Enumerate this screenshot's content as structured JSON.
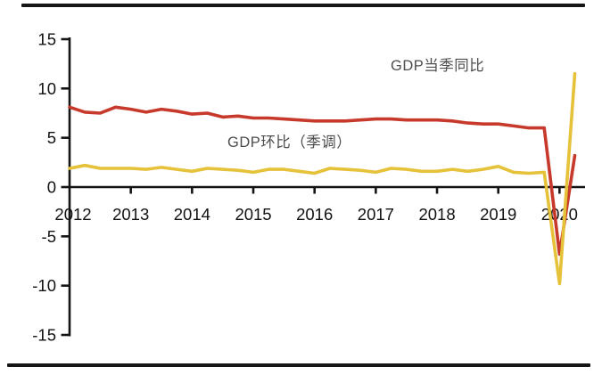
{
  "figure": {
    "background": "#ffffff",
    "frame_rule_color": "#161616",
    "axis_color": "#141414",
    "axis_label_color": "#121212",
    "series_label_color": "#4d4d4d"
  },
  "chart_data": {
    "type": "line",
    "title": "",
    "grid": false,
    "legend_position": "inline-annotations",
    "x_axis": {
      "year_labels": [
        "2012",
        "2013",
        "2014",
        "2015",
        "2016",
        "2017",
        "2018",
        "2019",
        "2020"
      ],
      "categories": [
        "2012Q1",
        "2012Q2",
        "2012Q3",
        "2012Q4",
        "2013Q1",
        "2013Q2",
        "2013Q3",
        "2013Q4",
        "2014Q1",
        "2014Q2",
        "2014Q3",
        "2014Q4",
        "2015Q1",
        "2015Q2",
        "2015Q3",
        "2015Q4",
        "2016Q1",
        "2016Q2",
        "2016Q3",
        "2016Q4",
        "2017Q1",
        "2017Q2",
        "2017Q3",
        "2017Q4",
        "2018Q1",
        "2018Q2",
        "2018Q3",
        "2018Q4",
        "2019Q1",
        "2019Q2",
        "2019Q3",
        "2019Q4",
        "2020Q1",
        "2020Q2"
      ]
    },
    "y_axis": {
      "ticks": [
        15,
        10,
        5,
        0,
        -5,
        -10,
        -15
      ],
      "ylim": [
        -15,
        15
      ],
      "unit": "%"
    },
    "series": [
      {
        "id": "gdp-yoy",
        "name": "GDP当季同比",
        "color": "#c6392b",
        "values": [
          8.1,
          7.6,
          7.5,
          8.1,
          7.9,
          7.6,
          7.9,
          7.7,
          7.4,
          7.5,
          7.1,
          7.2,
          7.0,
          7.0,
          6.9,
          6.8,
          6.7,
          6.7,
          6.7,
          6.8,
          6.9,
          6.9,
          6.8,
          6.8,
          6.8,
          6.7,
          6.5,
          6.4,
          6.4,
          6.2,
          6.0,
          6.0,
          -6.8,
          3.2
        ]
      },
      {
        "id": "gdp-qoq-sa",
        "name": "GDP环比（季调）",
        "color": "#e6c13a",
        "values": [
          1.9,
          2.2,
          1.9,
          1.9,
          1.9,
          1.8,
          2.0,
          1.8,
          1.6,
          1.9,
          1.8,
          1.7,
          1.5,
          1.8,
          1.8,
          1.6,
          1.4,
          1.9,
          1.8,
          1.7,
          1.5,
          1.9,
          1.8,
          1.6,
          1.6,
          1.8,
          1.6,
          1.8,
          2.1,
          1.5,
          1.4,
          1.5,
          -9.8,
          11.5
        ]
      }
    ]
  }
}
